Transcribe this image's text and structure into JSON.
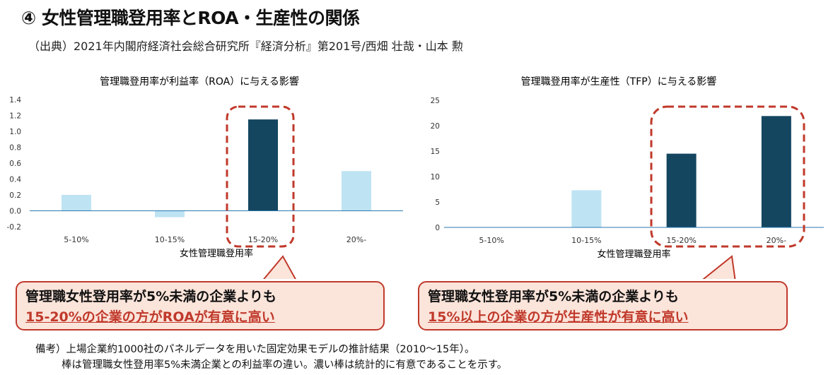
{
  "title": "④ 女性管理職登用率とROA・生産性の関係",
  "source": "（出典）2021年内閣府経済社会総合研究所『経済分析』第201号/西畑 壮哉・山本 勲",
  "chart_data": [
    {
      "type": "bar",
      "title": "管理職登用率が利益率（ROA）に与える影響",
      "xlabel": "女性管理職登用率",
      "ylabel": "",
      "categories": [
        "5-10%",
        "10-15%",
        "15-20%",
        "20%-"
      ],
      "values": [
        0.2,
        -0.08,
        1.15,
        0.5
      ],
      "significant": [
        false,
        false,
        true,
        false
      ],
      "ylim": [
        -0.2,
        1.4
      ],
      "yticks": [
        "-0.2",
        "0.0",
        "0.2",
        "0.4",
        "0.6",
        "0.8",
        "1.0",
        "1.2",
        "1.4"
      ],
      "yticks_values": [
        -0.2,
        0,
        0.2,
        0.4,
        0.6,
        0.8,
        1.0,
        1.2,
        1.4
      ]
    },
    {
      "type": "bar",
      "title": "管理職登用率が生産性（TFP）に与える影響",
      "xlabel": "女性管理職登用率",
      "ylabel": "",
      "categories": [
        "5-10%",
        "10-15%",
        "15-20%",
        "20%-"
      ],
      "values": [
        0,
        7.3,
        14.5,
        21.9
      ],
      "significant": [
        false,
        false,
        true,
        true
      ],
      "ylim": [
        0,
        25
      ],
      "yticks": [
        "0",
        "5",
        "10",
        "15",
        "20",
        "25"
      ],
      "yticks_values": [
        0,
        5,
        10,
        15,
        20,
        25
      ]
    }
  ],
  "colors": {
    "significant": "#144660",
    "not_significant": "#BEE3F3",
    "highlight": "#C0392B",
    "callout_bg": "#FBE4DA"
  },
  "callouts": [
    {
      "line1": "管理職女性登用率が5%未満の企業よりも",
      "line2": "15-20%の企業の方がROAが有意に高い"
    },
    {
      "line1": "管理職女性登用率が5%未満の企業よりも",
      "line2": "15%以上の企業の方が生産性が有意に高い"
    }
  ],
  "note": {
    "line1": "備考）上場企業約1000社のパネルデータを用いた固定効果モデルの推計結果（2010～15年）。",
    "line2": "棒は管理職女性登用率5%未満企業との利益率の違い。濃い棒は統計的に有意であることを示す。"
  }
}
